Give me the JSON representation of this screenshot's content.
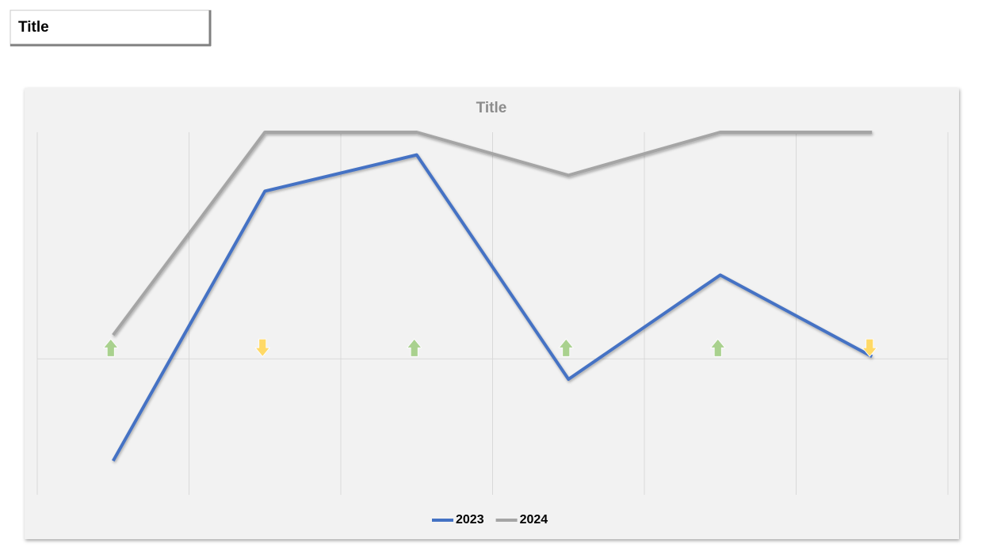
{
  "header": {
    "title": "Title"
  },
  "chart_data": {
    "type": "line",
    "title": "Title",
    "categories": [
      null,
      null,
      null,
      null,
      null,
      null
    ],
    "series": [
      {
        "name": "2023",
        "color": "#4472c4",
        "values": [
          -45,
          74,
          90,
          -9,
          37,
          1
        ]
      },
      {
        "name": "2024",
        "color": "#a5a5a5",
        "values": [
          10.5,
          100,
          100,
          81,
          100,
          100
        ]
      }
    ],
    "ylim": [
      -60,
      100
    ],
    "xgrid": true,
    "zero_line": true,
    "arrows": [
      "up",
      "down",
      "up",
      "up",
      "up",
      "down"
    ],
    "arrow_colors": {
      "up": "#a9d18e",
      "down": "#ffd966"
    },
    "legend": "bottom"
  }
}
